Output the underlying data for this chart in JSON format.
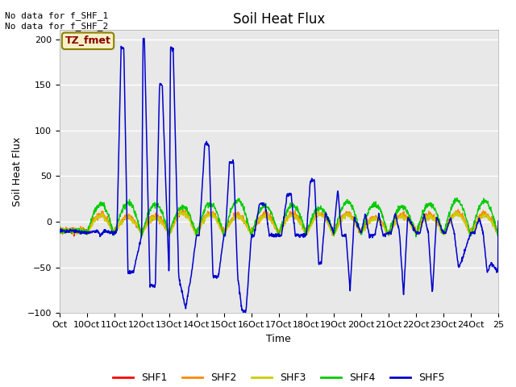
{
  "title": "Soil Heat Flux",
  "ylabel": "Soil Heat Flux",
  "xlabel": "Time",
  "ylim": [
    -100,
    210
  ],
  "yticks": [
    -100,
    -50,
    0,
    50,
    100,
    150,
    200
  ],
  "annotation_text": "No data for f_SHF_1\nNo data for f_SHF_2",
  "tz_label": "TZ_fmet",
  "legend_labels": [
    "SHF1",
    "SHF2",
    "SHF3",
    "SHF4",
    "SHF5"
  ],
  "line_colors": {
    "SHF1": "#ff0000",
    "SHF2": "#ff8800",
    "SHF3": "#cccc00",
    "SHF4": "#00cc00",
    "SHF5": "#0000cc"
  },
  "xtick_labels": [
    "Oct",
    "10Oct",
    "11Oct",
    "12Oct",
    "13Oct",
    "14Oct",
    "15Oct",
    "16Oct",
    "17Oct",
    "18Oct",
    "19Oct",
    "20Oct",
    "21Oct",
    "22Oct",
    "23Oct",
    "24Oct",
    "25"
  ],
  "fig_facecolor": "#f0f0f0",
  "plot_bg_color": "#e8e8e8",
  "grid_color": "#ffffff",
  "title_fontsize": 12,
  "axis_label_fontsize": 9,
  "tick_fontsize": 8
}
